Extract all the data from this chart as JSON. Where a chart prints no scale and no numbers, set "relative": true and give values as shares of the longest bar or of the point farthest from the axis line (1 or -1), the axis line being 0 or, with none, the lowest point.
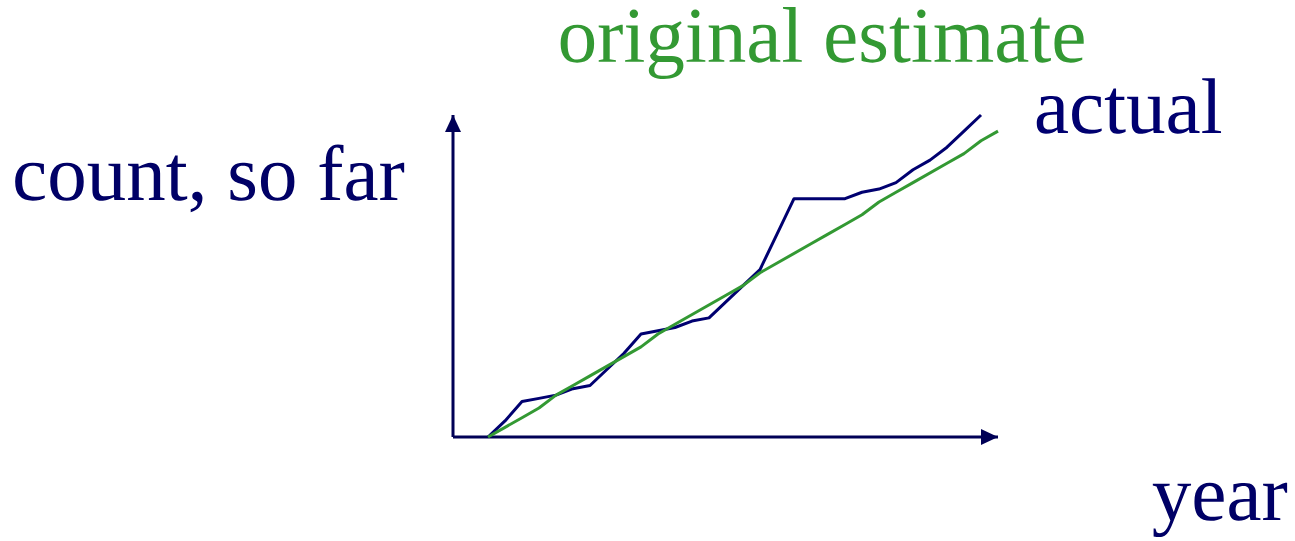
{
  "chart_data": {
    "type": "line",
    "xlabel": "year",
    "ylabel": "count, so far",
    "relative": true,
    "line_style": "solid",
    "categories": [
      null,
      null,
      null,
      null,
      null,
      null,
      null,
      null,
      null,
      null,
      null,
      null,
      null,
      null,
      null,
      null,
      null,
      null,
      null,
      null,
      null,
      null,
      null,
      null,
      null,
      null,
      null,
      null,
      null,
      null,
      null
    ],
    "series": [
      {
        "name": "actual",
        "color": "#000070",
        "values": [
          0,
          0.05,
          0.11,
          0.12,
          0.13,
          0.15,
          0.16,
          0.21,
          0.26,
          0.32,
          0.33,
          0.34,
          0.36,
          0.37,
          0.42,
          0.47,
          0.52,
          0.63,
          0.74,
          0.74,
          0.74,
          0.74,
          0.76,
          0.77,
          0.79,
          0.83,
          0.86,
          0.9,
          0.95,
          1,
          null
        ]
      },
      {
        "name": "original estimate",
        "color": "#339933",
        "values": [
          0,
          0.03,
          0.06,
          0.09,
          0.13,
          0.16,
          0.19,
          0.22,
          0.25,
          0.28,
          0.32,
          0.35,
          0.38,
          0.41,
          0.44,
          0.47,
          0.51,
          0.54,
          0.57,
          0.6,
          0.63,
          0.66,
          0.69,
          0.73,
          0.76,
          0.79,
          0.82,
          0.85,
          0.88,
          0.92,
          0.95
        ]
      }
    ]
  }
}
